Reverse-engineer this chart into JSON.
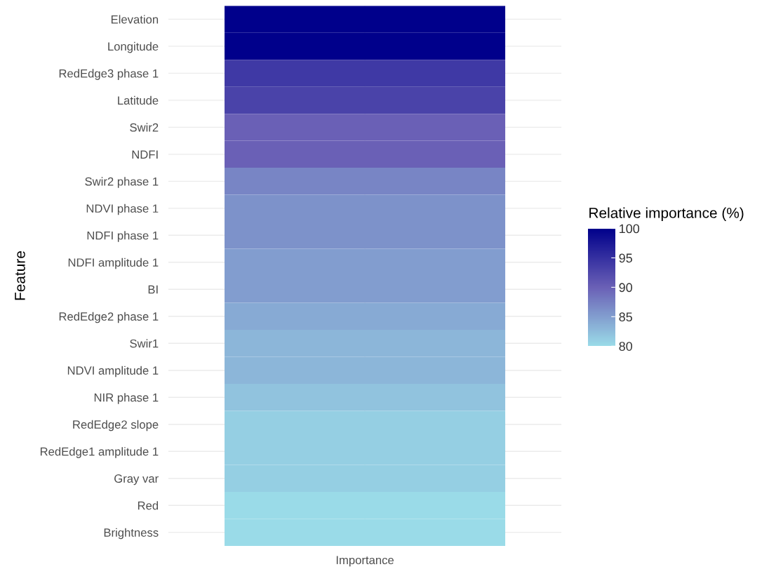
{
  "chart_data": {
    "type": "heatmap",
    "ylabel": "Feature",
    "legend_title": "Relative importance (%)",
    "categories": [
      "Importance"
    ],
    "y_categories": [
      "Elevation",
      "Longitude",
      "RedEdge3 phase 1",
      "Latitude",
      "Swir2",
      "NDFI",
      "Swir2 phase 1",
      "NDVI phase 1",
      "NDFI phase 1",
      "NDFI amplitude 1",
      "BI",
      "RedEdge2 phase 1",
      "Swir1",
      "NDVI amplitude 1",
      "NIR phase 1",
      "RedEdge2 slope",
      "RedEdge1 amplitude 1",
      "Gray var",
      "Red",
      "Brightness"
    ],
    "cells": [
      [
        100
      ],
      [
        100
      ],
      [
        94
      ],
      [
        93
      ],
      [
        90
      ],
      [
        90
      ],
      [
        87
      ],
      [
        86
      ],
      [
        86
      ],
      [
        85
      ],
      [
        85
      ],
      [
        84
      ],
      [
        83
      ],
      [
        83
      ],
      [
        82
      ],
      [
        81
      ],
      [
        81
      ],
      [
        81
      ],
      [
        80
      ],
      [
        80
      ]
    ],
    "clim": [
      80,
      100
    ],
    "cticks": [
      80,
      85,
      90,
      95,
      100
    ],
    "grid": true
  }
}
